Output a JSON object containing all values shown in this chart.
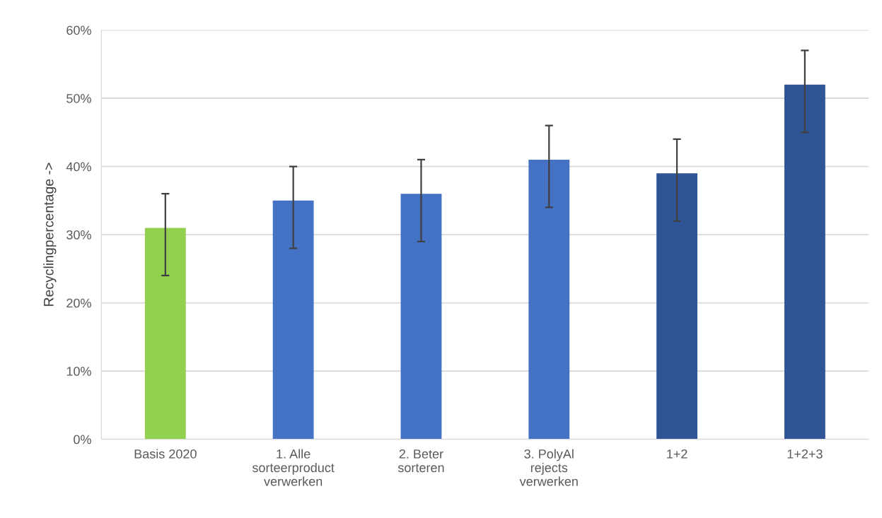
{
  "chart_data": {
    "type": "bar",
    "ylabel": "Recyclingpercentage ->",
    "categories": [
      "Basis 2020",
      "1. Alle sorteerproduct verwerken",
      "2. Beter sorteren",
      "3. PolyAl rejects verwerken",
      "1+2",
      "1+2+3"
    ],
    "values": [
      31,
      35,
      36,
      41,
      39,
      52
    ],
    "colors": [
      "#92d050",
      "#4472c4",
      "#4472c4",
      "#4472c4",
      "#2f5597",
      "#2f5597"
    ],
    "errors": [
      [
        24,
        36
      ],
      [
        28,
        40
      ],
      [
        29,
        41
      ],
      [
        34,
        46
      ],
      [
        32,
        44
      ],
      [
        45,
        57
      ]
    ],
    "ylim": [
      0,
      60
    ],
    "yticks": [
      {
        "value": 0,
        "label": "0%"
      },
      {
        "value": 10,
        "label": "10%"
      },
      {
        "value": 20,
        "label": "20%"
      },
      {
        "value": 30,
        "label": "30%"
      },
      {
        "value": 40,
        "label": "40%"
      },
      {
        "value": 50,
        "label": "50%"
      },
      {
        "value": 60,
        "label": "60%"
      }
    ],
    "grid": "y"
  }
}
